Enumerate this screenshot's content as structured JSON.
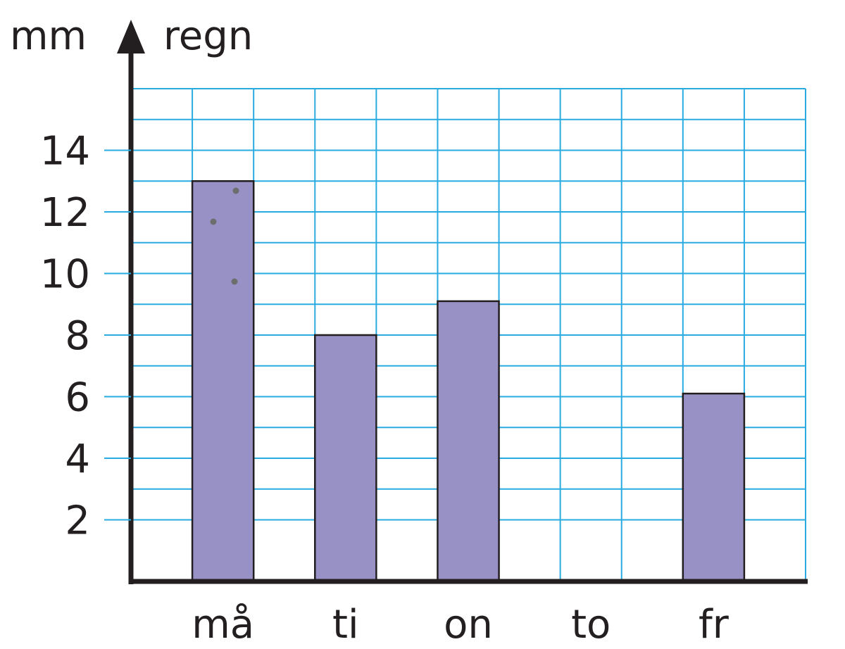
{
  "chart_data": {
    "type": "bar",
    "y_unit_label": "mm",
    "title": "regn",
    "categories": [
      "må",
      "ti",
      "on",
      "to",
      "fr"
    ],
    "values": [
      13,
      8,
      9.1,
      0,
      6.1
    ],
    "yticks": [
      "2",
      "4",
      "6",
      "8",
      "10",
      "12",
      "14"
    ],
    "ylim": [
      0,
      16
    ],
    "grid": true,
    "colors": {
      "bar": "#9891c6",
      "grid": "#29abe2",
      "axis": "#231f20"
    }
  }
}
